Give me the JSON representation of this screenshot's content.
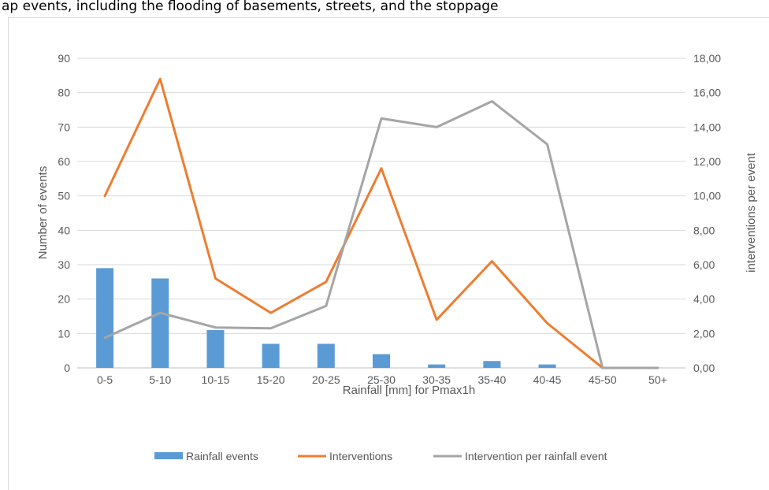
{
  "top_strip_text": "ap events, including the flooding of basements, streets, and the stoppage",
  "chart_data": {
    "type": "bar+line",
    "categories": [
      "0-5",
      "5-10",
      "10-15",
      "15-20",
      "20-25",
      "25-30",
      "30-35",
      "35-40",
      "40-45",
      "45-50",
      "50+"
    ],
    "series": [
      {
        "name": "Rainfall events",
        "kind": "bar",
        "axis": "left",
        "color": "#5b9bd5",
        "values": [
          29,
          26,
          11,
          7,
          7,
          4,
          1,
          2,
          1,
          0,
          0
        ]
      },
      {
        "name": "Interventions",
        "kind": "line",
        "axis": "left",
        "color": "#ed7d31",
        "values": [
          50,
          84,
          26,
          16,
          25,
          58,
          14,
          31,
          13,
          0,
          null
        ]
      },
      {
        "name": "Intervention per rainfall event",
        "kind": "line",
        "axis": "right",
        "color": "#a5a5a5",
        "values": [
          1.75,
          3.2,
          2.35,
          2.3,
          3.6,
          14.5,
          14.0,
          15.5,
          13.0,
          0.0,
          0.0
        ]
      }
    ],
    "xlabel": "Rainfall [mm] for Pmax1h",
    "ylabel": "Number of events",
    "y2label": "interventions per event",
    "ylim": [
      0,
      90
    ],
    "y2lim": [
      0,
      18
    ],
    "yticks": [
      "0",
      "10",
      "20",
      "30",
      "40",
      "50",
      "60",
      "70",
      "80",
      "90"
    ],
    "y2ticks": [
      "0,00",
      "2,00",
      "4,00",
      "6,00",
      "8,00",
      "10,00",
      "12,00",
      "14,00",
      "16,00",
      "18,00"
    ],
    "grid": true,
    "legend_position": "bottom"
  }
}
